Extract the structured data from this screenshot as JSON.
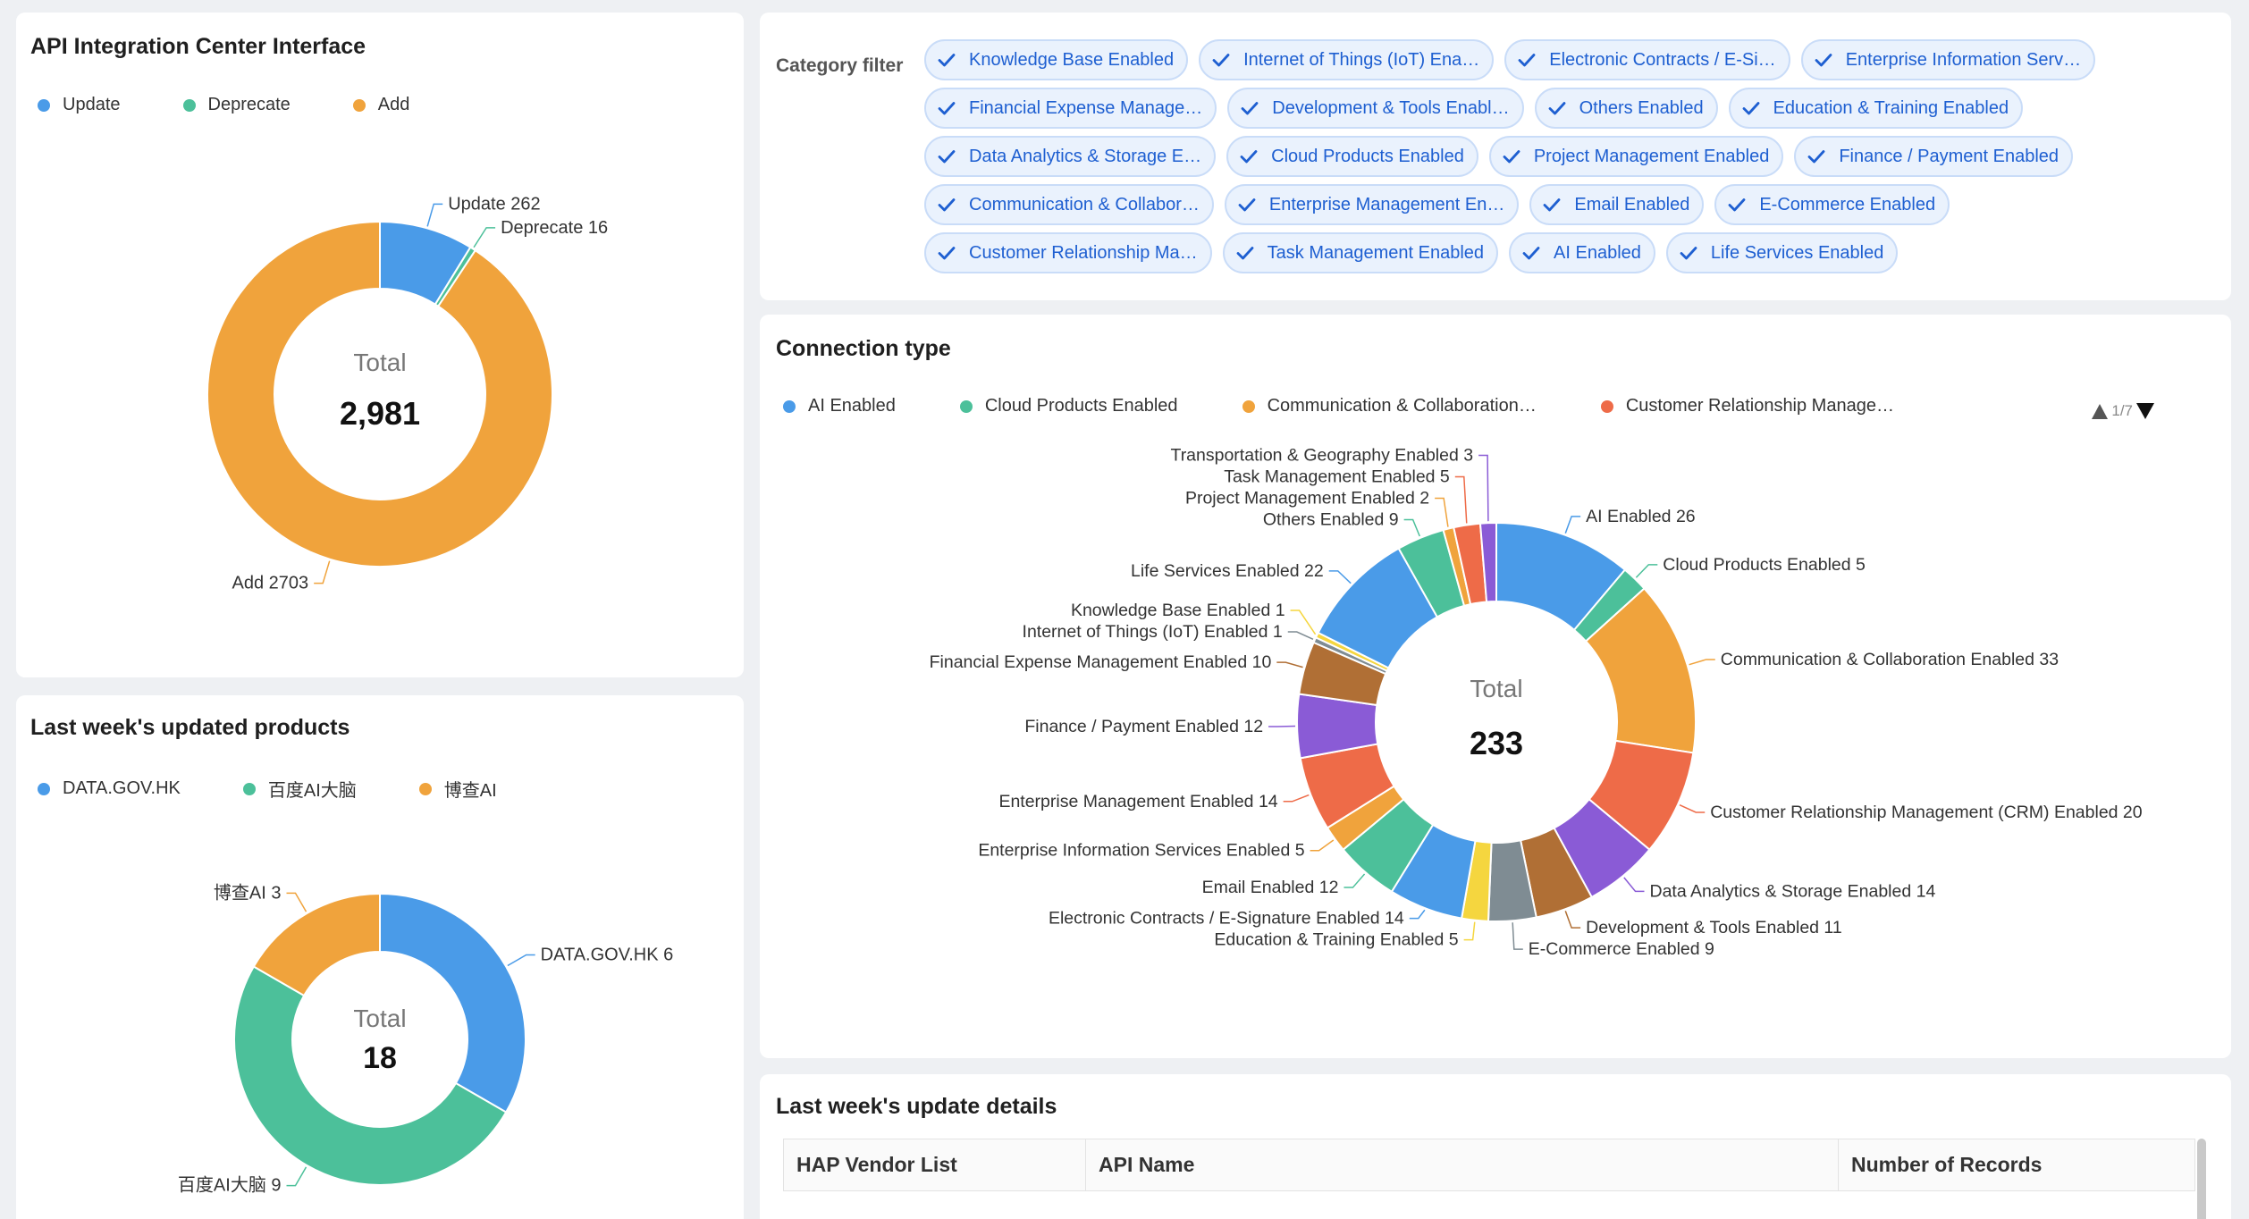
{
  "card_api": {
    "title": "API Integration Center Interface",
    "legend": [
      {
        "label": "Update",
        "color": "#4a9be8"
      },
      {
        "label": "Deprecate",
        "color": "#4cc09a"
      },
      {
        "label": "Add",
        "color": "#f0a33c"
      }
    ],
    "total_label": "Total",
    "total_value": "2,981"
  },
  "card_products": {
    "title": "Last week's updated products",
    "legend": [
      {
        "label": "DATA.GOV.HK",
        "color": "#4a9be8"
      },
      {
        "label": "百度AI大脑",
        "color": "#4cc09a"
      },
      {
        "label": "博查AI",
        "color": "#f0a33c"
      }
    ],
    "total_label": "Total",
    "total_value": "18"
  },
  "filter": {
    "label": "Category filter",
    "rows": [
      [
        "Knowledge Base Enabled",
        "Internet of Things (IoT) Ena…",
        "Electronic Contracts / E-Si…",
        "Enterprise Information Serv…"
      ],
      [
        "Financial Expense Manage…",
        "Development & Tools Enabl…",
        "Others Enabled",
        "Education & Training Enabled"
      ],
      [
        "Data Analytics & Storage E…",
        "Cloud Products Enabled",
        "Project Management Enabled",
        "Finance / Payment Enabled"
      ],
      [
        "Communication & Collabor…",
        "Enterprise Management En…",
        "Email Enabled",
        "E-Commerce Enabled"
      ],
      [
        "Customer Relationship Ma…",
        "Task Management Enabled",
        "AI Enabled",
        "Life Services Enabled"
      ]
    ]
  },
  "card_connection": {
    "title": "Connection type",
    "legend": [
      {
        "label": "AI Enabled",
        "color": "#4a9be8"
      },
      {
        "label": "Cloud Products Enabled",
        "color": "#4cc09a"
      },
      {
        "label": "Communication & Collaboration…",
        "color": "#f0a33c"
      },
      {
        "label": "Customer Relationship Manage…",
        "color": "#ee6b48"
      }
    ],
    "pager": "1/7",
    "total_label": "Total",
    "total_value": "233"
  },
  "card_details": {
    "title": "Last week's update details",
    "columns": [
      "HAP Vendor List",
      "API Name",
      "Number of Records"
    ]
  },
  "chart_data": [
    {
      "type": "pie",
      "title": "API Integration Center Interface",
      "donut": true,
      "center_label": "Total",
      "center_value": "2,981",
      "slices": [
        {
          "label": "Update",
          "value": 262,
          "color": "#4a9be8"
        },
        {
          "label": "Deprecate",
          "value": 16,
          "color": "#4cc09a"
        },
        {
          "label": "Add",
          "value": 2703,
          "color": "#f0a33c"
        }
      ],
      "legend": "top-left"
    },
    {
      "type": "pie",
      "title": "Last week's updated products",
      "donut": true,
      "center_label": "Total",
      "center_value": "18",
      "slices": [
        {
          "label": "DATA.GOV.HK",
          "value": 6,
          "color": "#4a9be8"
        },
        {
          "label": "百度AI大脑",
          "value": 9,
          "color": "#4cc09a"
        },
        {
          "label": "博查AI",
          "value": 3,
          "color": "#f0a33c"
        }
      ],
      "legend": "top-left"
    },
    {
      "type": "pie",
      "title": "Connection type",
      "donut": true,
      "center_label": "Total",
      "center_value": "233",
      "slices": [
        {
          "label": "AI Enabled",
          "value": 26,
          "color": "#4a9be8"
        },
        {
          "label": "Cloud Products Enabled",
          "value": 5,
          "color": "#4cc09a"
        },
        {
          "label": "Communication & Collaboration Enabled",
          "value": 33,
          "color": "#f0a33c"
        },
        {
          "label": "Customer Relationship Management (CRM) Enabled",
          "value": 20,
          "color": "#ee6b48"
        },
        {
          "label": "Data Analytics & Storage Enabled",
          "value": 14,
          "color": "#8a5bd6"
        },
        {
          "label": "Development & Tools Enabled",
          "value": 11,
          "color": "#b06f35"
        },
        {
          "label": "E-Commerce Enabled",
          "value": 9,
          "color": "#7f8c93"
        },
        {
          "label": "Education & Training Enabled",
          "value": 5,
          "color": "#f5d63f"
        },
        {
          "label": "Electronic Contracts / E-Signature Enabled",
          "value": 14,
          "color": "#4a9be8"
        },
        {
          "label": "Email Enabled",
          "value": 12,
          "color": "#4cc09a"
        },
        {
          "label": "Enterprise Information Services Enabled",
          "value": 5,
          "color": "#f0a33c"
        },
        {
          "label": "Enterprise Management Enabled",
          "value": 14,
          "color": "#ee6b48"
        },
        {
          "label": "Finance / Payment Enabled",
          "value": 12,
          "color": "#8a5bd6"
        },
        {
          "label": "Financial Expense Management Enabled",
          "value": 10,
          "color": "#b06f35"
        },
        {
          "label": "Internet of Things (IoT) Enabled",
          "value": 1,
          "color": "#7f8c93"
        },
        {
          "label": "Knowledge Base Enabled",
          "value": 1,
          "color": "#f5d63f"
        },
        {
          "label": "Life Services Enabled",
          "value": 22,
          "color": "#4a9be8"
        },
        {
          "label": "Others Enabled",
          "value": 9,
          "color": "#4cc09a"
        },
        {
          "label": "Project Management Enabled",
          "value": 2,
          "color": "#f0a33c"
        },
        {
          "label": "Task Management Enabled",
          "value": 5,
          "color": "#ee6b48"
        },
        {
          "label": "Transportation & Geography Enabled",
          "value": 3,
          "color": "#8a5bd6"
        }
      ],
      "legend": "top-left"
    }
  ]
}
